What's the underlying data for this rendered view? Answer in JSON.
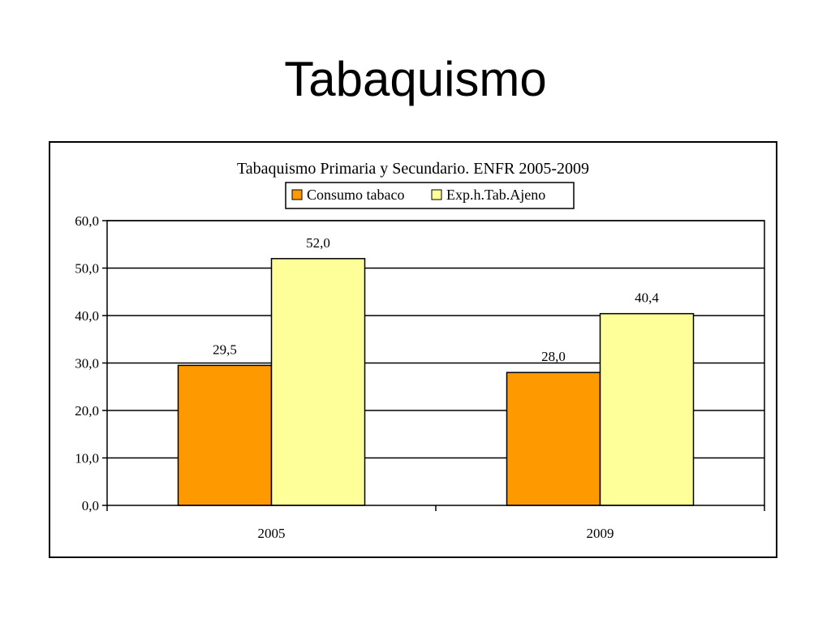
{
  "slide": {
    "title": "Tabaquismo"
  },
  "chart_data": {
    "type": "bar",
    "title": "Tabaquismo Primaria y Secundario. ENFR 2005-2009",
    "categories": [
      "2005",
      "2009"
    ],
    "series": [
      {
        "name": "Consumo tabaco",
        "values": [
          29.5,
          28.0
        ],
        "labels": [
          "29,5",
          "28,0"
        ],
        "color": "#ff9900"
      },
      {
        "name": "Exp.h.Tab.Ajeno",
        "values": [
          52.0,
          40.4
        ],
        "labels": [
          "52,0",
          "40,4"
        ],
        "color": "#ffff99"
      }
    ],
    "y_ticks": [
      {
        "value": 0,
        "label": "0,0"
      },
      {
        "value": 10,
        "label": "10,0"
      },
      {
        "value": 20,
        "label": "20,0"
      },
      {
        "value": 30,
        "label": "30,0"
      },
      {
        "value": 40,
        "label": "40,0"
      },
      {
        "value": 50,
        "label": "50,0"
      },
      {
        "value": 60,
        "label": "60,0"
      }
    ],
    "ylim": [
      0,
      60
    ],
    "grid": true,
    "legend_position": "top",
    "xlabel": "",
    "ylabel": ""
  }
}
